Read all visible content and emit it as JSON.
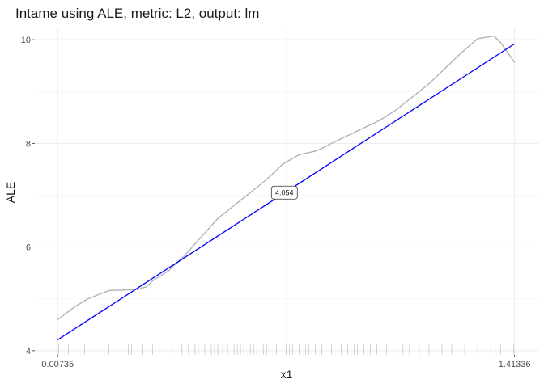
{
  "chart_data": {
    "type": "line",
    "title": "Intame using ALE, metric: L2, output: lm",
    "xlabel": "x1",
    "ylabel": "ALE",
    "xlim": [
      -0.063,
      1.484
    ],
    "ylim": [
      3.92,
      10.22
    ],
    "x_ticks": [
      {
        "value": 0.00735,
        "label": "0.00735"
      },
      {
        "value": 1.41336,
        "label": "1.41336"
      }
    ],
    "y_ticks": [
      {
        "value": 4,
        "label": "4"
      },
      {
        "value": 6,
        "label": "6"
      },
      {
        "value": 8,
        "label": "8"
      },
      {
        "value": 10,
        "label": "10"
      }
    ],
    "grid": true,
    "series": [
      {
        "role": "ale-curve",
        "color": "#b3b3b3",
        "x": [
          0.00735,
          0.06,
          0.1,
          0.165,
          0.25,
          0.28,
          0.3,
          0.35,
          0.4,
          0.45,
          0.5,
          0.55,
          0.6,
          0.65,
          0.7,
          0.75,
          0.8,
          0.82,
          0.85,
          0.9,
          0.95,
          1.0,
          1.05,
          1.1,
          1.15,
          1.2,
          1.25,
          1.3,
          1.35,
          1.37,
          1.41336
        ],
        "y": [
          4.6,
          4.85,
          5.0,
          5.16,
          5.18,
          5.23,
          5.35,
          5.55,
          5.85,
          6.2,
          6.55,
          6.8,
          7.05,
          7.3,
          7.6,
          7.78,
          7.85,
          7.9,
          8.0,
          8.15,
          8.3,
          8.45,
          8.65,
          8.9,
          9.15,
          9.45,
          9.75,
          10.02,
          10.07,
          9.95,
          9.56
        ]
      },
      {
        "role": "linear-fit",
        "color": "#0000ff",
        "x": [
          0.00735,
          1.41336
        ],
        "y": [
          4.21,
          9.92
        ]
      }
    ],
    "annotations": [
      {
        "text": "4.054",
        "x": 0.705,
        "y": 7.05
      }
    ],
    "rug_x": [
      0.01,
      0.04,
      0.09,
      0.165,
      0.19,
      0.225,
      0.235,
      0.27,
      0.3,
      0.32,
      0.36,
      0.39,
      0.41,
      0.43,
      0.44,
      0.46,
      0.48,
      0.49,
      0.5,
      0.515,
      0.53,
      0.55,
      0.56,
      0.57,
      0.58,
      0.6,
      0.61,
      0.62,
      0.64,
      0.65,
      0.66,
      0.68,
      0.7,
      0.71,
      0.72,
      0.73,
      0.75,
      0.77,
      0.78,
      0.8,
      0.82,
      0.83,
      0.85,
      0.87,
      0.88,
      0.9,
      0.92,
      0.93,
      0.95,
      0.97,
      0.99,
      1.0,
      1.02,
      1.04,
      1.07,
      1.09,
      1.12,
      1.15,
      1.19,
      1.22,
      1.26,
      1.3,
      1.34,
      1.37,
      1.41
    ]
  }
}
